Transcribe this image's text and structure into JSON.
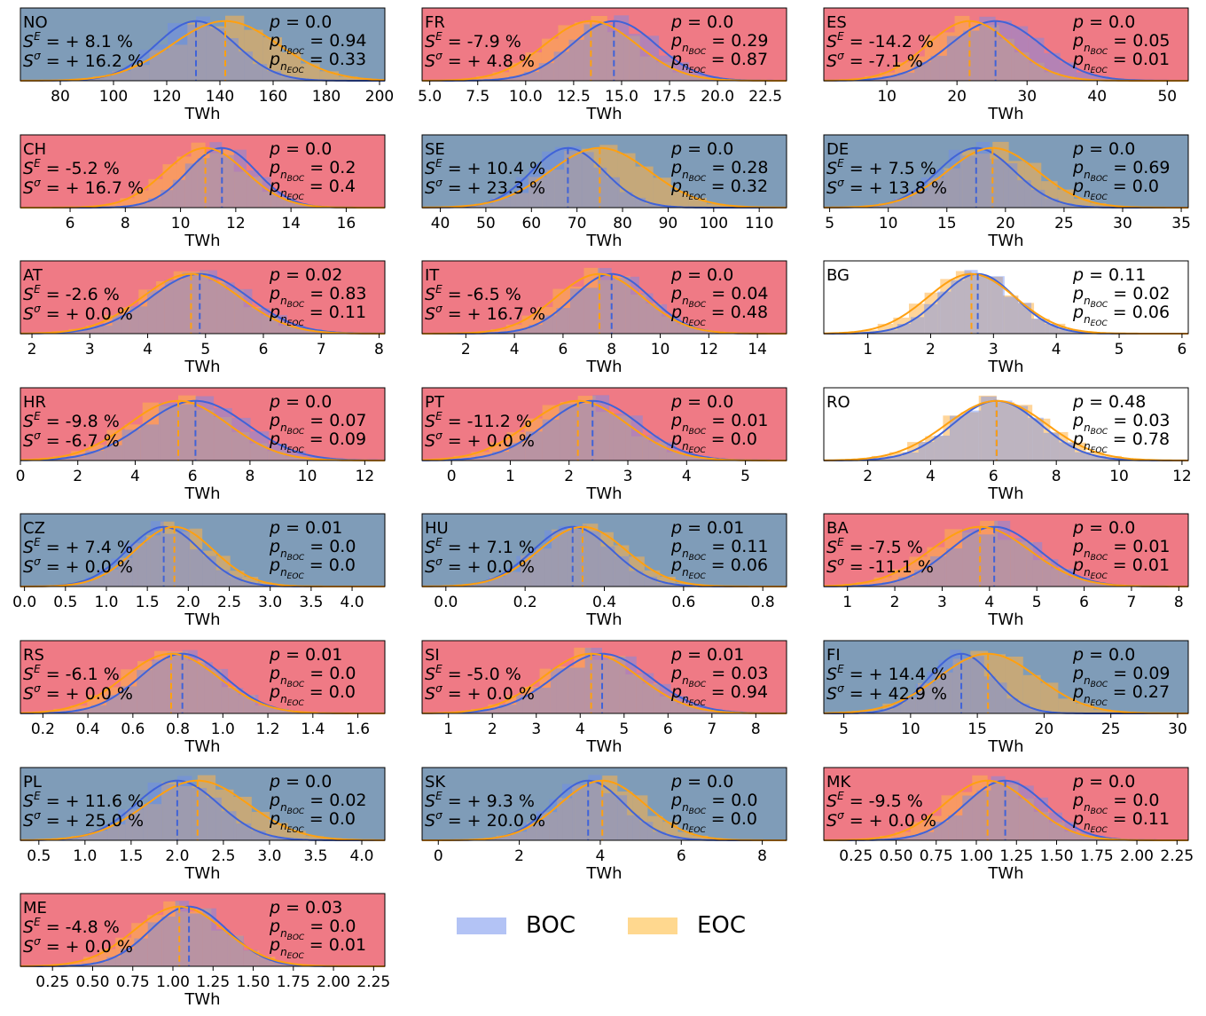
{
  "legend": {
    "boc_label": "BOC",
    "eoc_label": "EOC",
    "boc_color": "#b3c3f5",
    "eoc_color": "#ffd88f"
  },
  "colors": {
    "positive_bg": "#7f9cb8",
    "negative_bg": "#ef7a85",
    "neutral_bg": "#ffffff",
    "boc_line": "#4063d8",
    "eoc_line": "#ffa010"
  },
  "chart_data": [
    {
      "type": "area",
      "country": "NO",
      "xlabel": "TWh",
      "xlim": [
        65,
        202
      ],
      "ticks": [
        "80",
        "100",
        "120",
        "140",
        "160",
        "180",
        "200"
      ],
      "boc_mean": 131,
      "eoc_mean": 142,
      "boc_sd": 15,
      "eoc_sd": 20,
      "se": "= + 8.1 %",
      "ss": "= + 16.2 %",
      "p": "= 0.0",
      "pb": "= 0.94",
      "pe": "= 0.33",
      "bg": "positive"
    },
    {
      "type": "area",
      "country": "FR",
      "xlabel": "TWh",
      "xlim": [
        4.6,
        23.6
      ],
      "ticks": [
        "5.0",
        "7.5",
        "10.0",
        "12.5",
        "15.0",
        "17.5",
        "20.0",
        "22.5"
      ],
      "boc_mean": 14.6,
      "eoc_mean": 13.4,
      "boc_sd": 2.2,
      "eoc_sd": 2.4,
      "se": "= -7.9 %",
      "ss": "= + 4.8 %",
      "p": "= 0.0",
      "pb": "= 0.29",
      "pe": "= 0.87",
      "bg": "negative"
    },
    {
      "type": "area",
      "country": "ES",
      "xlabel": "TWh",
      "xlim": [
        1,
        53
      ],
      "ticks": [
        "10",
        "20",
        "30",
        "40",
        "50"
      ],
      "boc_mean": 25.5,
      "eoc_mean": 21.8,
      "boc_sd": 6.5,
      "eoc_sd": 6.0,
      "se": "= -14.2 %",
      "ss": "= -7.1 %",
      "p": "= 0.0",
      "pb": "= 0.05",
      "pe": "= 0.01",
      "bg": "negative"
    },
    {
      "type": "area",
      "country": "CH",
      "xlabel": "TWh",
      "xlim": [
        4.2,
        17.4
      ],
      "ticks": [
        "6",
        "8",
        "10",
        "12",
        "14",
        "16"
      ],
      "boc_mean": 11.5,
      "eoc_mean": 10.9,
      "boc_sd": 1.25,
      "eoc_sd": 1.45,
      "se": "= -5.2 %",
      "ss": "= + 16.7 %",
      "p": "= 0.0",
      "pb": "= 0.2",
      "pe": "= 0.4",
      "bg": "negative"
    },
    {
      "type": "area",
      "country": "SE",
      "xlabel": "TWh",
      "xlim": [
        36,
        116
      ],
      "ticks": [
        "40",
        "50",
        "60",
        "70",
        "80",
        "90",
        "100",
        "110"
      ],
      "boc_mean": 68,
      "eoc_mean": 75,
      "boc_sd": 8,
      "eoc_sd": 11,
      "se": "= + 10.4 %",
      "ss": "= + 23.3 %",
      "p": "= 0.0",
      "pb": "= 0.28",
      "pe": "= 0.32",
      "bg": "positive"
    },
    {
      "type": "area",
      "country": "DE",
      "xlabel": "TWh",
      "xlim": [
        4.5,
        35.6
      ],
      "ticks": [
        "5",
        "10",
        "15",
        "20",
        "25",
        "30",
        "35"
      ],
      "boc_mean": 17.5,
      "eoc_mean": 18.9,
      "boc_sd": 3.3,
      "eoc_sd": 3.9,
      "se": "= + 7.5 %",
      "ss": "= + 13.8 %",
      "p": "= 0.0",
      "pb": "= 0.69",
      "pe": "= 0.0",
      "bg": "positive"
    },
    {
      "type": "area",
      "country": "AT",
      "xlabel": "TWh",
      "xlim": [
        1.8,
        8.1
      ],
      "ticks": [
        "2",
        "3",
        "4",
        "5",
        "6",
        "7",
        "8"
      ],
      "boc_mean": 4.9,
      "eoc_mean": 4.75,
      "boc_sd": 0.85,
      "eoc_sd": 0.85,
      "se": "= -2.6 %",
      "ss": "= + 0.0 %",
      "p": "= 0.02",
      "pb": "= 0.83",
      "pe": "= 0.11",
      "bg": "negative"
    },
    {
      "type": "area",
      "country": "IT",
      "xlabel": "TWh",
      "xlim": [
        0.2,
        15.2
      ],
      "ticks": [
        "2",
        "4",
        "6",
        "8",
        "10",
        "12",
        "14"
      ],
      "boc_mean": 8.0,
      "eoc_mean": 7.5,
      "boc_sd": 1.6,
      "eoc_sd": 1.8,
      "se": "= -6.5 %",
      "ss": "= + 16.7 %",
      "p": "= 0.0",
      "pb": "= 0.04",
      "pe": "= 0.48",
      "bg": "negative"
    },
    {
      "type": "area",
      "country": "BG",
      "xlabel": "TWh",
      "xlim": [
        0.3,
        6.1
      ],
      "ticks": [
        "1",
        "2",
        "3",
        "4",
        "5",
        "6"
      ],
      "boc_mean": 2.75,
      "eoc_mean": 2.65,
      "boc_sd": 0.6,
      "eoc_sd": 0.7,
      "se": "",
      "ss": "",
      "p": "= 0.11",
      "pb": "= 0.02",
      "pe": "= 0.06",
      "bg": "neutral"
    },
    {
      "type": "area",
      "country": "HR",
      "xlabel": "TWh",
      "xlim": [
        0,
        12.7
      ],
      "ticks": [
        "0",
        "2",
        "4",
        "6",
        "8",
        "10",
        "12"
      ],
      "boc_mean": 6.1,
      "eoc_mean": 5.5,
      "boc_sd": 1.8,
      "eoc_sd": 1.75,
      "se": "= -9.8 %",
      "ss": "= -6.7 %",
      "p": "= 0.0",
      "pb": "= 0.07",
      "pe": "= 0.09",
      "bg": "negative"
    },
    {
      "type": "area",
      "country": "PT",
      "xlabel": "TWh",
      "xlim": [
        -0.5,
        5.7
      ],
      "ticks": [
        "0",
        "1",
        "2",
        "3",
        "4",
        "5"
      ],
      "boc_mean": 2.4,
      "eoc_mean": 2.15,
      "boc_sd": 0.8,
      "eoc_sd": 0.85,
      "se": "= -11.2 %",
      "ss": "= + 0.0 %",
      "p": "= 0.0",
      "pb": "= 0.01",
      "pe": "= 0.0",
      "bg": "negative"
    },
    {
      "type": "area",
      "country": "RO",
      "xlabel": "TWh",
      "xlim": [
        0.6,
        12.2
      ],
      "ticks": [
        "2",
        "4",
        "6",
        "8",
        "10",
        "12"
      ],
      "boc_mean": 6.1,
      "eoc_mean": 6.1,
      "boc_sd": 1.4,
      "eoc_sd": 1.6,
      "se": "",
      "ss": "",
      "p": "= 0.48",
      "pb": "= 0.03",
      "pe": "= 0.78",
      "bg": "neutral"
    },
    {
      "type": "area",
      "country": "CZ",
      "xlabel": "TWh",
      "xlim": [
        -0.05,
        4.4
      ],
      "ticks": [
        "0.0",
        "0.5",
        "1.0",
        "1.5",
        "2.0",
        "2.5",
        "3.0",
        "3.5",
        "4.0"
      ],
      "boc_mean": 1.7,
      "eoc_mean": 1.83,
      "boc_sd": 0.45,
      "eoc_sd": 0.48,
      "se": "= + 7.4 %",
      "ss": "= + 0.0 %",
      "p": "= 0.01",
      "pb": "= 0.0",
      "pe": "= 0.0",
      "bg": "positive"
    },
    {
      "type": "area",
      "country": "HU",
      "xlabel": "TWh",
      "xlim": [
        -0.06,
        0.86
      ],
      "ticks": [
        "0.0",
        "0.2",
        "0.4",
        "0.6",
        "0.8"
      ],
      "boc_mean": 0.32,
      "eoc_mean": 0.345,
      "boc_sd": 0.1,
      "eoc_sd": 0.11,
      "se": "= + 7.1 %",
      "ss": "= + 0.0 %",
      "p": "= 0.01",
      "pb": "= 0.11",
      "pe": "= 0.06",
      "bg": "positive"
    },
    {
      "type": "area",
      "country": "BA",
      "xlabel": "TWh",
      "xlim": [
        0.5,
        8.2
      ],
      "ticks": [
        "1",
        "2",
        "3",
        "4",
        "5",
        "6",
        "7",
        "8"
      ],
      "boc_mean": 4.1,
      "eoc_mean": 3.8,
      "boc_sd": 0.95,
      "eoc_sd": 1.05,
      "se": "= -7.5 %",
      "ss": "= -11.1 %",
      "p": "= 0.0",
      "pb": "= 0.01",
      "pe": "= 0.01",
      "bg": "negative"
    },
    {
      "type": "area",
      "country": "RS",
      "xlabel": "TWh",
      "xlim": [
        0.1,
        1.72
      ],
      "ticks": [
        "0.2",
        "0.4",
        "0.6",
        "0.8",
        "1.0",
        "1.2",
        "1.4",
        "1.6"
      ],
      "boc_mean": 0.82,
      "eoc_mean": 0.77,
      "boc_sd": 0.19,
      "eoc_sd": 0.21,
      "se": "= -6.1 %",
      "ss": "= + 0.0 %",
      "p": "= 0.01",
      "pb": "= 0.0",
      "pe": "= 0.0",
      "bg": "negative"
    },
    {
      "type": "area",
      "country": "SI",
      "xlabel": "TWh",
      "xlim": [
        0.4,
        8.7
      ],
      "ticks": [
        "1",
        "2",
        "3",
        "4",
        "5",
        "6",
        "7",
        "8"
      ],
      "boc_mean": 4.5,
      "eoc_mean": 4.25,
      "boc_sd": 1.1,
      "eoc_sd": 1.1,
      "se": "= -5.0 %",
      "ss": "= + 0.0 %",
      "p": "= 0.01",
      "pb": "= 0.03",
      "pe": "= 0.94",
      "bg": "negative"
    },
    {
      "type": "area",
      "country": "FI",
      "xlabel": "TWh",
      "xlim": [
        3.5,
        30.8
      ],
      "ticks": [
        "5",
        "10",
        "15",
        "20",
        "25",
        "30"
      ],
      "boc_mean": 13.8,
      "eoc_mean": 15.8,
      "boc_sd": 2.4,
      "eoc_sd": 3.7,
      "se": "= + 14.4 %",
      "ss": "= + 42.9 %",
      "p": "= 0.0",
      "pb": "= 0.09",
      "pe": "= 0.27",
      "bg": "positive"
    },
    {
      "type": "area",
      "country": "PL",
      "xlabel": "TWh",
      "xlim": [
        0.3,
        4.25
      ],
      "ticks": [
        "0.5",
        "1.0",
        "1.5",
        "2.0",
        "2.5",
        "3.0",
        "3.5",
        "4.0"
      ],
      "boc_mean": 2.0,
      "eoc_mean": 2.22,
      "boc_sd": 0.45,
      "eoc_sd": 0.55,
      "se": "= + 11.6 %",
      "ss": "= + 25.0 %",
      "p": "= 0.0",
      "pb": "= 0.02",
      "pe": "= 0.0",
      "bg": "positive"
    },
    {
      "type": "area",
      "country": "SK",
      "xlabel": "TWh",
      "xlim": [
        -0.4,
        8.6
      ],
      "ticks": [
        "0",
        "2",
        "4",
        "6",
        "8"
      ],
      "boc_mean": 3.7,
      "eoc_mean": 4.05,
      "boc_sd": 0.9,
      "eoc_sd": 1.05,
      "se": "= + 9.3 %",
      "ss": "= + 20.0 %",
      "p": "= 0.0",
      "pb": "= 0.0",
      "pe": "= 0.0",
      "bg": "positive"
    },
    {
      "type": "area",
      "country": "MK",
      "xlabel": "TWh",
      "xlim": [
        0.05,
        2.32
      ],
      "ticks": [
        "0.25",
        "0.50",
        "0.75",
        "1.00",
        "1.25",
        "1.50",
        "1.75",
        "2.00",
        "2.25"
      ],
      "boc_mean": 1.18,
      "eoc_mean": 1.07,
      "boc_sd": 0.25,
      "eoc_sd": 0.27,
      "se": "= -9.5 %",
      "ss": "= + 0.0 %",
      "p": "= 0.0",
      "pb": "= 0.0",
      "pe": "= 0.11",
      "bg": "negative"
    },
    {
      "type": "area",
      "country": "ME",
      "xlabel": "TWh",
      "xlim": [
        0.05,
        2.32
      ],
      "ticks": [
        "0.25",
        "0.50",
        "0.75",
        "1.00",
        "1.25",
        "1.50",
        "1.75",
        "2.00",
        "2.25"
      ],
      "boc_mean": 1.1,
      "eoc_mean": 1.04,
      "boc_sd": 0.24,
      "eoc_sd": 0.28,
      "se": "= -4.8 %",
      "ss": "= + 0.0 %",
      "p": "= 0.03",
      "pb": "= 0.0",
      "pe": "= 0.01",
      "bg": "negative"
    }
  ]
}
